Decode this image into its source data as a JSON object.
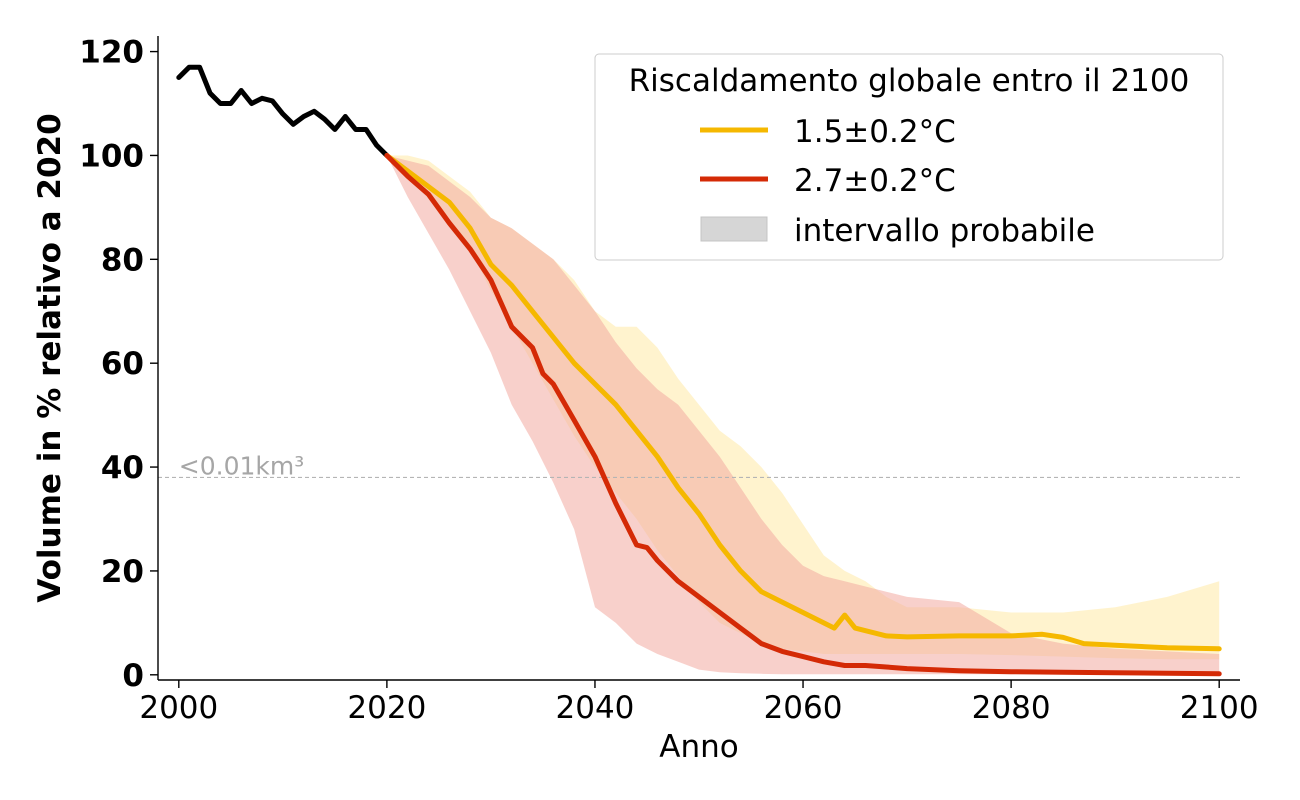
{
  "chart_data": {
    "type": "line",
    "title": "",
    "xlabel": "Anno",
    "ylabel": "Volume in % relativo a 2020",
    "xlim": [
      1998,
      2102
    ],
    "ylim": [
      -1,
      123
    ],
    "xticks": [
      2000,
      2020,
      2040,
      2060,
      2080,
      2100
    ],
    "yticks": [
      0,
      20,
      40,
      60,
      80,
      100,
      120
    ],
    "grid": false,
    "legend": {
      "title": "Riscaldamento globale entro il 2100",
      "placement": "top-right",
      "entries": [
        {
          "label": "1.5±0.2°C",
          "kind": "line",
          "color": "#f5b800"
        },
        {
          "label": "2.7±0.2°C",
          "kind": "line",
          "color": "#d42a06"
        },
        {
          "label": "intervallo probabile",
          "kind": "patch",
          "color": "#d6d6d6"
        }
      ]
    },
    "annotation": {
      "text": "<0.01km³",
      "y": 38,
      "color": "#a6a6a6"
    },
    "colors": {
      "observed": "#000000",
      "low": "#f5b800",
      "high": "#d42a06",
      "low_band": "#ffe9a6",
      "high_band": "#f2a9a1"
    },
    "observed": {
      "x": [
        2000,
        2001,
        2002,
        2003,
        2004,
        2005,
        2006,
        2007,
        2008,
        2009,
        2010,
        2011,
        2012,
        2013,
        2014,
        2015,
        2016,
        2017,
        2018,
        2019,
        2020
      ],
      "y": [
        115,
        117,
        117,
        112,
        110,
        110,
        112.5,
        110,
        111,
        110.5,
        108,
        106,
        107.5,
        108.5,
        107,
        105,
        107.5,
        105,
        105,
        102,
        100
      ]
    },
    "series": [
      {
        "name": "1.5±0.2°C",
        "x": [
          2020,
          2022,
          2024,
          2026,
          2028,
          2030,
          2032,
          2034,
          2036,
          2038,
          2040,
          2042,
          2044,
          2046,
          2048,
          2050,
          2052,
          2054,
          2056,
          2058,
          2060,
          2062,
          2063,
          2064,
          2065,
          2066,
          2068,
          2070,
          2075,
          2080,
          2083,
          2085,
          2087,
          2090,
          2095,
          2100
        ],
        "y": [
          100,
          97,
          94,
          91,
          86,
          79,
          75,
          70,
          65,
          60,
          56,
          52,
          47,
          42,
          36,
          31,
          25,
          20,
          16,
          14,
          12,
          10,
          9,
          11.5,
          9,
          8.5,
          7.5,
          7.3,
          7.5,
          7.5,
          7.8,
          7.2,
          6,
          5.7,
          5.2,
          5
        ],
        "band_x": [
          2020,
          2022,
          2024,
          2026,
          2028,
          2030,
          2032,
          2034,
          2036,
          2038,
          2040,
          2042,
          2044,
          2046,
          2048,
          2050,
          2052,
          2054,
          2056,
          2058,
          2060,
          2062,
          2064,
          2066,
          2068,
          2070,
          2075,
          2080,
          2085,
          2090,
          2095,
          2100
        ],
        "band_upper": [
          100,
          100,
          99,
          96,
          93,
          88,
          86,
          83,
          80,
          76,
          70,
          67,
          67,
          63,
          57,
          52,
          47,
          44,
          40,
          35,
          29,
          23,
          20,
          18,
          15,
          13,
          13,
          12,
          12,
          13,
          15,
          18
        ],
        "band_lower": [
          100,
          97,
          92,
          88,
          82,
          74,
          67,
          60,
          53,
          46,
          40,
          35,
          30,
          24,
          19,
          14,
          10,
          8,
          6,
          5,
          4.5,
          4,
          4,
          4,
          4,
          4,
          4,
          3.8,
          3.5,
          3.2,
          3,
          3
        ]
      },
      {
        "name": "2.7±0.2°C",
        "x": [
          2020,
          2022,
          2024,
          2026,
          2028,
          2030,
          2032,
          2034,
          2035,
          2036,
          2038,
          2040,
          2042,
          2044,
          2045,
          2046,
          2048,
          2050,
          2052,
          2054,
          2056,
          2058,
          2060,
          2062,
          2064,
          2066,
          2068,
          2070,
          2075,
          2080,
          2085,
          2090,
          2095,
          2100
        ],
        "y": [
          100,
          96,
          92.5,
          87,
          82,
          76,
          67,
          63,
          58,
          56,
          49,
          42,
          33,
          25,
          24.5,
          22,
          18,
          15,
          12,
          9,
          6,
          4.5,
          3.5,
          2.5,
          1.8,
          1.8,
          1.5,
          1.2,
          0.8,
          0.6,
          0.5,
          0.4,
          0.3,
          0.2
        ],
        "band_x": [
          2020,
          2022,
          2024,
          2026,
          2028,
          2030,
          2032,
          2034,
          2036,
          2038,
          2040,
          2042,
          2044,
          2046,
          2048,
          2050,
          2052,
          2054,
          2056,
          2058,
          2060,
          2062,
          2064,
          2066,
          2068,
          2070,
          2075,
          2080,
          2085,
          2090,
          2095,
          2100
        ],
        "band_upper": [
          100,
          99,
          98,
          95,
          92,
          88,
          86,
          83,
          80,
          75,
          70,
          64,
          59,
          55,
          52,
          47,
          42,
          36,
          30,
          25,
          21,
          19,
          18,
          17,
          16,
          15,
          14,
          8,
          6,
          5,
          4.5,
          4
        ],
        "band_lower": [
          100,
          92,
          85,
          78,
          70,
          62,
          52,
          45,
          37,
          28,
          13,
          10,
          6,
          4,
          2.5,
          1,
          0.5,
          0.3,
          0.2,
          0.1,
          0.1,
          0.1,
          0.1,
          0.1,
          0.1,
          0.1,
          0.1,
          0.1,
          0.1,
          0.1,
          0.1,
          0.1
        ]
      }
    ]
  }
}
